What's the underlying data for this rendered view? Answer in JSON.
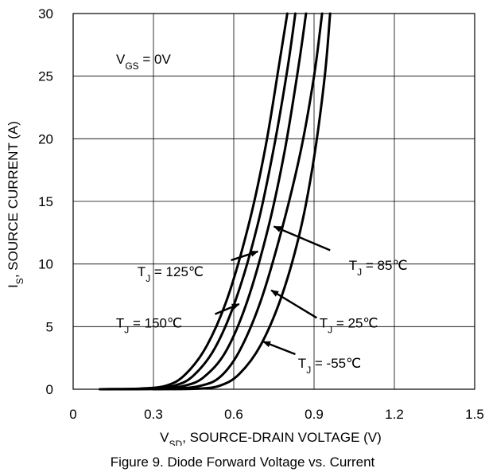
{
  "chart_data": {
    "type": "line",
    "title": "Figure 9. Diode Forward Voltage vs. Current",
    "xlabel": {
      "main": "V",
      "sub": "SD",
      "rest": ", SOURCE-DRAIN VOLTAGE (V)"
    },
    "ylabel": {
      "main": "I",
      "sub": "S",
      "rest": ", SOURCE CURRENT (A)"
    },
    "xlim": [
      0,
      1.5
    ],
    "ylim": [
      0,
      30
    ],
    "xticks": [
      "0",
      "0.3",
      "0.6",
      "0.9",
      "1.2",
      "1.5"
    ],
    "yticks": [
      "0",
      "5",
      "10",
      "15",
      "20",
      "25",
      "30"
    ],
    "grid": true,
    "condition": {
      "main": "V",
      "sub": "GS",
      "rest": " = 0V"
    },
    "series": [
      {
        "name": "T_J = 150℃",
        "x": [
          0.1,
          0.25,
          0.35,
          0.42,
          0.5,
          0.58,
          0.66,
          0.72,
          0.77,
          0.8
        ],
        "y": [
          0,
          0.05,
          0.3,
          1.2,
          3.5,
          7.5,
          13.5,
          19.5,
          26.0,
          30.0
        ]
      },
      {
        "name": "T_J = 125℃",
        "x": [
          0.1,
          0.28,
          0.38,
          0.45,
          0.53,
          0.61,
          0.69,
          0.75,
          0.8,
          0.83
        ],
        "y": [
          0,
          0.05,
          0.3,
          1.1,
          3.3,
          7.3,
          13.2,
          19.3,
          25.5,
          30.0
        ]
      },
      {
        "name": "T_J = 85℃",
        "x": [
          0.12,
          0.32,
          0.42,
          0.49,
          0.57,
          0.65,
          0.73,
          0.79,
          0.84,
          0.87
        ],
        "y": [
          0,
          0.05,
          0.3,
          1.0,
          3.0,
          7.0,
          13.0,
          19.0,
          25.5,
          30.0
        ]
      },
      {
        "name": "T_J = 25℃",
        "x": [
          0.18,
          0.38,
          0.48,
          0.55,
          0.62,
          0.7,
          0.78,
          0.85,
          0.9,
          0.93
        ],
        "y": [
          0,
          0.05,
          0.3,
          1.0,
          3.0,
          7.0,
          12.8,
          19.0,
          25.0,
          30.0
        ]
      },
      {
        "name": "T_J = -55℃",
        "x": [
          0.3,
          0.47,
          0.55,
          0.62,
          0.7,
          0.78,
          0.85,
          0.9,
          0.94,
          0.96
        ],
        "y": [
          0,
          0.05,
          0.3,
          1.2,
          3.5,
          7.5,
          12.8,
          18.5,
          25.0,
          30.0
        ]
      }
    ],
    "annotations": [
      {
        "pre": "T",
        "sub": "J",
        "post": " = 125℃",
        "at": [
          0.24,
          9.4
        ],
        "arrow": [
          0.59,
          10.3,
          0.69,
          11.0
        ]
      },
      {
        "pre": "T",
        "sub": "J",
        "post": " = 150℃",
        "at": [
          0.16,
          5.3
        ],
        "arrow": [
          0.53,
          6.0,
          0.62,
          6.8
        ]
      },
      {
        "pre": "T",
        "sub": "J",
        "post": " = 85℃",
        "at": [
          1.03,
          9.9
        ],
        "arrow": [
          0.96,
          11.1,
          0.75,
          13.0
        ]
      },
      {
        "pre": "T",
        "sub": "J",
        "post": " = 25℃",
        "at": [
          0.92,
          5.3
        ],
        "arrow": [
          0.91,
          5.7,
          0.74,
          7.9
        ]
      },
      {
        "pre": "T",
        "sub": "J",
        "post": " = -55℃",
        "at": [
          0.84,
          2.1
        ],
        "arrow": [
          0.83,
          2.8,
          0.71,
          3.8
        ]
      }
    ]
  }
}
